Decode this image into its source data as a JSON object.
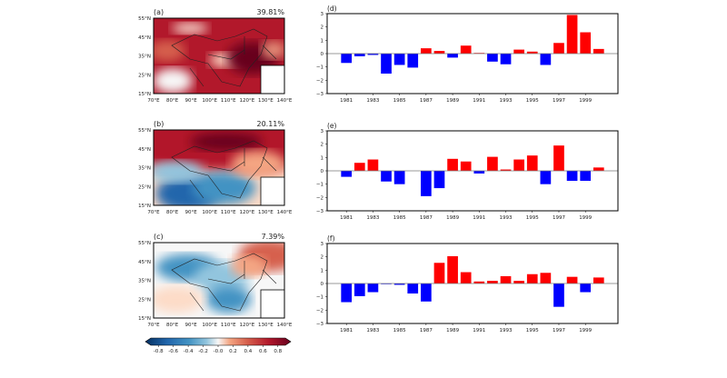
{
  "maps": [
    {
      "panel": "(a)",
      "percent": "39.81%",
      "pattern": "mostly-positive"
    },
    {
      "panel": "(b)",
      "percent": "20.11%",
      "pattern": "north-positive-south-negative"
    },
    {
      "panel": "(c)",
      "percent": "7.39%",
      "pattern": "west-negative-northeast-positive"
    }
  ],
  "map_axes": {
    "lat_ticks": [
      "55°N",
      "45°N",
      "35°N",
      "25°N",
      "15°N"
    ],
    "lon_ticks": [
      "70°E",
      "80°E",
      "90°E",
      "100°E",
      "110°E",
      "120°E",
      "130°E",
      "140°E"
    ]
  },
  "colorbar": {
    "colormap": "RdBu_r",
    "ticks": [
      "-0.8",
      "-0.6",
      "-0.4",
      "-0.2",
      "-0.0",
      "0.2",
      "0.4",
      "0.6",
      "0.8"
    ],
    "range": [
      -0.9,
      0.9
    ]
  },
  "chart_data": [
    {
      "type": "bar",
      "title": "(d)",
      "categories": [
        1981,
        1982,
        1983,
        1984,
        1985,
        1986,
        1987,
        1988,
        1989,
        1990,
        1991,
        1992,
        1993,
        1994,
        1995,
        1996,
        1997,
        1998,
        1999,
        2000
      ],
      "values": [
        -0.7,
        -0.2,
        -0.1,
        -1.5,
        -0.85,
        -1.05,
        0.4,
        0.2,
        -0.3,
        0.6,
        0.05,
        -0.6,
        -0.8,
        0.3,
        0.15,
        -0.85,
        0.8,
        2.9,
        1.6,
        0.35
      ],
      "xticks": [
        "1981",
        "1983",
        "1985",
        "1987",
        "1989",
        "1991",
        "1993",
        "1995",
        "1997",
        "1999"
      ],
      "yticks": [
        "3",
        "2",
        "1",
        "0",
        "−1",
        "−2",
        "−3"
      ],
      "ylim": [
        -3,
        3
      ],
      "positive_color": "#ff0000",
      "negative_color": "#0000ff"
    },
    {
      "type": "bar",
      "title": "(e)",
      "categories": [
        1981,
        1982,
        1983,
        1984,
        1985,
        1986,
        1987,
        1988,
        1989,
        1990,
        1991,
        1992,
        1993,
        1994,
        1995,
        1996,
        1997,
        1998,
        1999,
        2000
      ],
      "values": [
        -0.45,
        0.6,
        0.85,
        -0.8,
        -1.0,
        0.0,
        -1.9,
        -1.3,
        0.9,
        0.7,
        -0.2,
        1.05,
        0.1,
        0.85,
        1.15,
        -1.0,
        1.9,
        -0.75,
        -0.75,
        0.25
      ],
      "xticks": [
        "1981",
        "1983",
        "1985",
        "1987",
        "1989",
        "1991",
        "1993",
        "1995",
        "1997",
        "1999"
      ],
      "yticks": [
        "3",
        "2",
        "1",
        "0",
        "−1",
        "−2",
        "−3"
      ],
      "ylim": [
        -3,
        3
      ],
      "positive_color": "#ff0000",
      "negative_color": "#0000ff"
    },
    {
      "type": "bar",
      "title": "(f)",
      "categories": [
        1981,
        1982,
        1983,
        1984,
        1985,
        1986,
        1987,
        1988,
        1989,
        1990,
        1991,
        1992,
        1993,
        1994,
        1995,
        1996,
        1997,
        1998,
        1999,
        2000
      ],
      "values": [
        -1.4,
        -0.95,
        -0.65,
        -0.05,
        -0.1,
        -0.75,
        -1.35,
        1.55,
        2.05,
        0.85,
        0.15,
        0.2,
        0.55,
        0.2,
        0.7,
        0.8,
        -1.75,
        0.5,
        -0.65,
        0.45
      ],
      "xticks": [
        "1981",
        "1983",
        "1985",
        "1987",
        "1989",
        "1991",
        "1993",
        "1995",
        "1997",
        "1999"
      ],
      "yticks": [
        "3",
        "2",
        "1",
        "0",
        "−1",
        "−2",
        "−3"
      ],
      "ylim": [
        -3,
        3
      ],
      "positive_color": "#ff0000",
      "negative_color": "#0000ff"
    }
  ]
}
